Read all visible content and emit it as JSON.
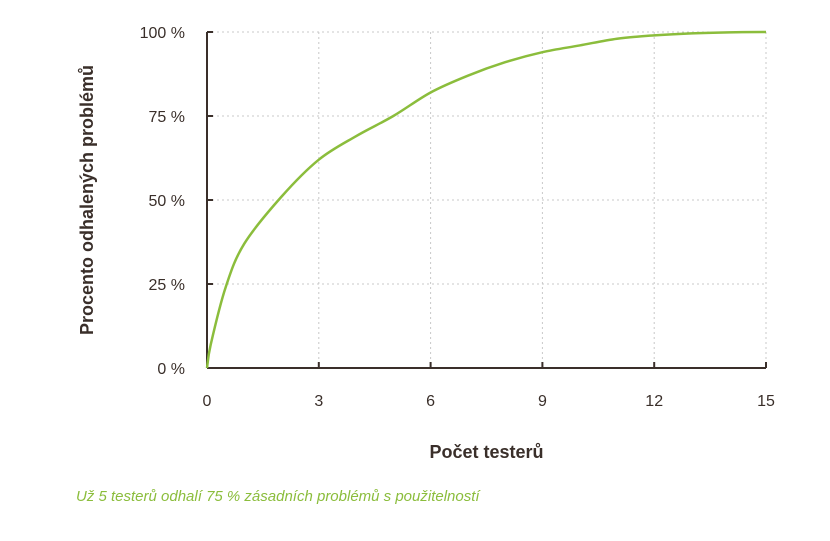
{
  "caption": "Už 5 testerů odhalí 75 % zásadních problémů s použitelností",
  "colors": {
    "line": "#8bbd3c",
    "caption": "#8bbd3c",
    "axis": "#3a2f2a",
    "grid": "#c8c8c8"
  },
  "chart_data": {
    "type": "line",
    "xlabel": "Počet testerů",
    "ylabel": "Procento odhalených problémů",
    "xlim": [
      0,
      15
    ],
    "ylim": [
      0,
      100
    ],
    "x_ticks": [
      0,
      3,
      6,
      9,
      12,
      15
    ],
    "y_ticks": [
      0,
      25,
      50,
      75,
      100
    ],
    "x_tick_labels": [
      "0",
      "3",
      "6",
      "9",
      "12",
      "15"
    ],
    "y_tick_labels": [
      "0 %",
      "25 %",
      "50 %",
      "75 %",
      "100 %"
    ],
    "grid": true,
    "grid_style": "dotted",
    "series": [
      {
        "x": [
          0,
          0.1,
          0.5,
          1,
          2,
          3,
          4,
          5,
          6,
          7,
          8,
          9,
          10,
          11,
          12,
          13,
          14,
          15
        ],
        "values": [
          0,
          7,
          24,
          37,
          51,
          62,
          69,
          75,
          82,
          87,
          91,
          94,
          96,
          98,
          99,
          99.6,
          99.9,
          100
        ]
      }
    ]
  }
}
